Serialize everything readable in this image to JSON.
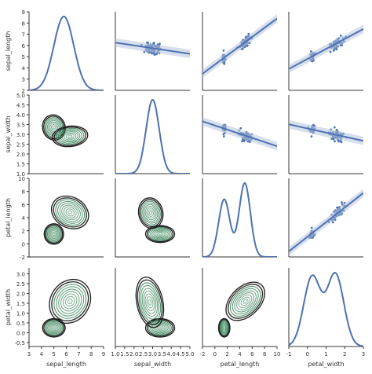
{
  "chart_data": {
    "type": "pairgrid",
    "variables": [
      {
        "name": "sepal_length",
        "lim": [
          3,
          9
        ],
        "ticks": [
          3,
          4,
          5,
          6,
          7,
          8,
          9
        ]
      },
      {
        "name": "sepal_width",
        "lim": [
          1.0,
          5.0
        ],
        "ticks": [
          1.0,
          1.5,
          2.0,
          2.5,
          3.0,
          3.5,
          4.0,
          4.5,
          5.0
        ]
      },
      {
        "name": "petal_length",
        "lim": [
          -2,
          10
        ],
        "ticks": [
          -2,
          0,
          2,
          4,
          6,
          8,
          10
        ]
      },
      {
        "name": "petal_width",
        "lim": [
          -1,
          3
        ],
        "ticks": [
          -1,
          0,
          1,
          2,
          3
        ]
      }
    ],
    "y_axes": [
      {
        "name": "sepal_length",
        "lim": [
          2,
          9
        ],
        "ticks": [
          2,
          3,
          4,
          5,
          6,
          7,
          8,
          9
        ]
      },
      {
        "name": "sepal_width",
        "lim": [
          1.0,
          5.0
        ],
        "ticks": [
          1.0,
          1.5,
          2.0,
          2.5,
          3.0,
          3.5,
          4.0,
          4.5,
          5.0
        ]
      },
      {
        "name": "petal_length",
        "lim": [
          -2,
          10
        ],
        "ticks": [
          -2,
          0,
          2,
          4,
          6,
          8,
          10
        ]
      },
      {
        "name": "petal_width",
        "lim": [
          -0.7,
          3.3
        ],
        "ticks": [
          -0.5,
          0.0,
          0.5,
          1.0,
          1.5,
          2.0,
          2.5,
          3.0
        ]
      }
    ],
    "upper": "scatter with linear regression fit",
    "diagonal": "univariate KDE",
    "lower": "bivariate KDE contours",
    "regression": [
      {
        "row": 0,
        "col": 1,
        "slope": -0.25,
        "intercept": 6.5
      },
      {
        "row": 0,
        "col": 2,
        "slope": 0.41,
        "intercept": 4.3
      },
      {
        "row": 0,
        "col": 3,
        "slope": 0.89,
        "intercept": 4.8
      },
      {
        "row": 1,
        "col": 2,
        "slope": -0.105,
        "intercept": 3.45
      },
      {
        "row": 1,
        "col": 3,
        "slope": -0.21,
        "intercept": 3.3
      },
      {
        "row": 2,
        "col": 3,
        "slope": 2.23,
        "intercept": 1.08
      }
    ],
    "kde_peaks": [
      {
        "variable": "sepal_length",
        "peaks": [
          [
            5.8,
            1.0
          ]
        ],
        "width": 0.8
      },
      {
        "variable": "sepal_width",
        "peaks": [
          [
            3.0,
            1.0
          ]
        ],
        "width": 0.35
      },
      {
        "variable": "petal_length",
        "peaks": [
          [
            1.5,
            0.78
          ],
          [
            4.8,
            1.0
          ]
        ],
        "width": 0.9
      },
      {
        "variable": "petal_width",
        "peaks": [
          [
            0.25,
            0.82
          ],
          [
            1.5,
            0.85
          ]
        ],
        "width": 0.45
      }
    ],
    "colors": {
      "scatter": "#4c72b0",
      "line": "#4c72b0",
      "band": "#b7c5de",
      "contour_dark": "#1a1a1a",
      "contour_fill": "#2e7d4f"
    }
  }
}
